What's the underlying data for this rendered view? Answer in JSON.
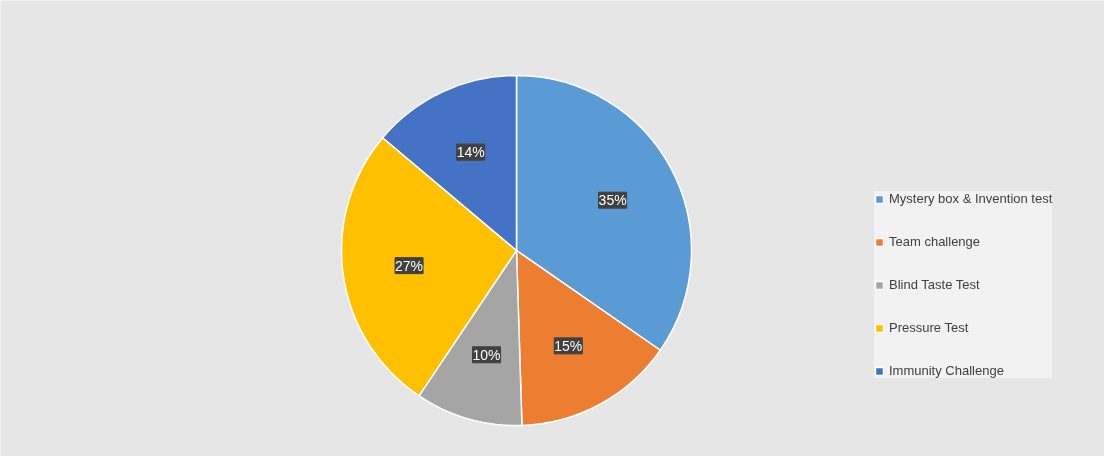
{
  "chart_data": {
    "type": "pie",
    "categories": [
      "Mystery box & Invention test",
      "Team challenge",
      "Blind Taste Test",
      "Pressure Test",
      "Immunity Challenge"
    ],
    "values": [
      35,
      15,
      10,
      27,
      14
    ],
    "colors": [
      "#5b9bd5",
      "#ed7d31",
      "#a5a5a5",
      "#ffc000",
      "#4472c4"
    ],
    "value_labels": [
      "35%",
      "15%",
      "10%",
      "27%",
      "14%"
    ],
    "legend": "right"
  }
}
